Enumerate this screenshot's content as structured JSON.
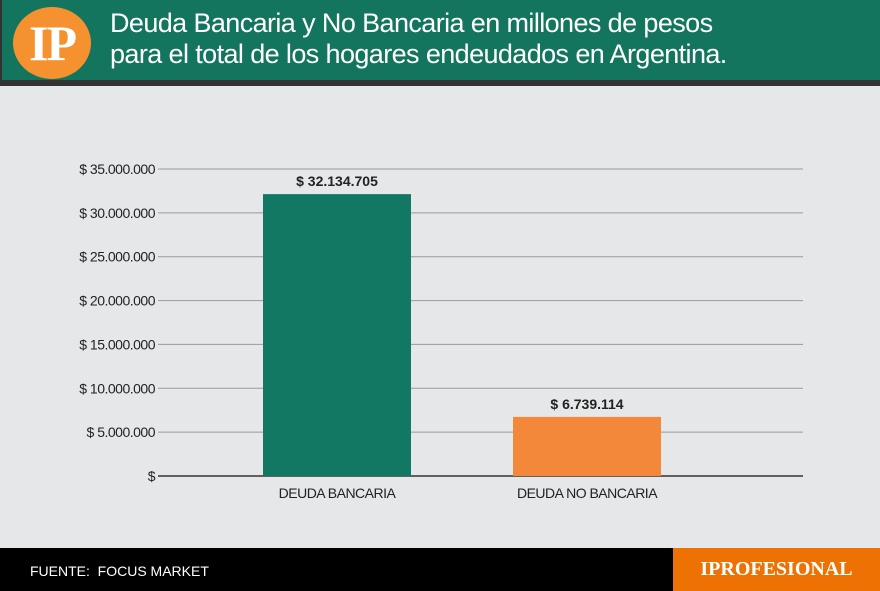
{
  "header": {
    "logo": "IP",
    "title_line1": "Deuda Bancaria y No Bancaria en millones de pesos",
    "title_line2": "para el total de los hogares endeudados en Argentina."
  },
  "footer": {
    "source": "FUENTE:  FOCUS MARKET",
    "brand": "IPROFESIONAL"
  },
  "chart_data": {
    "type": "bar",
    "categories": [
      "DEUDA BANCARIA",
      "DEUDA NO BANCARIA"
    ],
    "values": [
      32134705,
      6739114
    ],
    "data_labels": [
      "$ 32.134.705",
      "$ 6.739.114"
    ],
    "colors": [
      "#127763",
      "#f4883a"
    ],
    "ylim": [
      0,
      35000000
    ],
    "yticks": [
      0,
      5000000,
      10000000,
      15000000,
      20000000,
      25000000,
      30000000,
      35000000
    ],
    "ytick_labels": [
      "$",
      "$ 5.000.000",
      "$ 10.000.000",
      "$ 15.000.000",
      "$ 20.000.000",
      "$ 25.000.000",
      "$ 30.000.000",
      "$ 35.000.000"
    ],
    "grid": true
  }
}
